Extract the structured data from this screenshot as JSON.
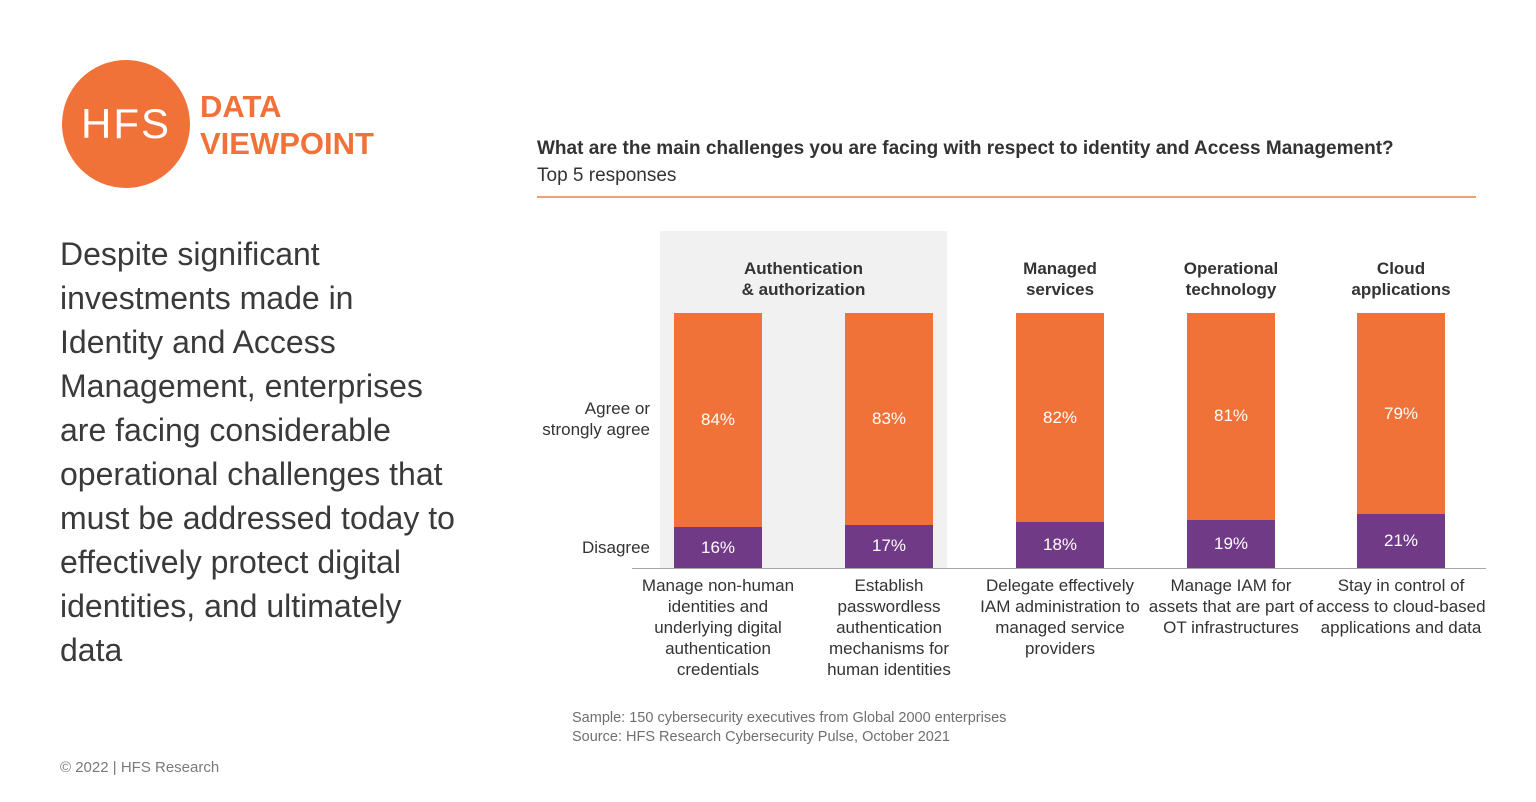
{
  "brand": {
    "logo_text": "HFS",
    "tag_line1": "DATA",
    "tag_line2": "VIEWPOINT",
    "accent_color": "#f07238"
  },
  "headline": "Despite significant investments made in Identity and Access Management, enterprises are facing considerable operational challenges that must be addressed today to effectively protect digital identities, and ultimately data",
  "copyright": "© 2022 | HFS Research",
  "chart_data": {
    "type": "bar",
    "stacked": true,
    "title": "What are the main challenges you are facing with respect to identity and Access Management?",
    "subtitle": "Top 5 responses",
    "row_labels": {
      "agree": "Agree or strongly agree",
      "disagree": "Disagree"
    },
    "groups": [
      {
        "name": "Authentication & authorization",
        "categories": [
          0,
          1
        ],
        "highlight": true
      },
      {
        "name": "Managed services",
        "categories": [
          2
        ],
        "highlight": false
      },
      {
        "name": "Operational technology",
        "categories": [
          3
        ],
        "highlight": false
      },
      {
        "name": "Cloud applications",
        "categories": [
          4
        ],
        "highlight": false
      }
    ],
    "categories": [
      "Manage non-human identities and underlying digital authentication credentials",
      "Establish passwordless authentication mechanisms for human identities",
      "Delegate effectively IAM administration to managed service providers",
      "Manage IAM for assets that are part of OT infrastructures",
      "Stay in control of access to cloud-based applications and data"
    ],
    "series": [
      {
        "name": "Disagree",
        "color": "#713a86",
        "values": [
          16,
          17,
          18,
          19,
          21
        ]
      },
      {
        "name": "Agree or strongly agree",
        "color": "#f07238",
        "values": [
          84,
          83,
          82,
          81,
          79
        ]
      }
    ],
    "ylim": [
      0,
      100
    ],
    "unit": "%"
  },
  "footnotes": {
    "sample": "Sample: 150 cybersecurity executives from Global 2000 enterprises",
    "source": "Source: HFS Research Cybersecurity Pulse, October 2021"
  }
}
